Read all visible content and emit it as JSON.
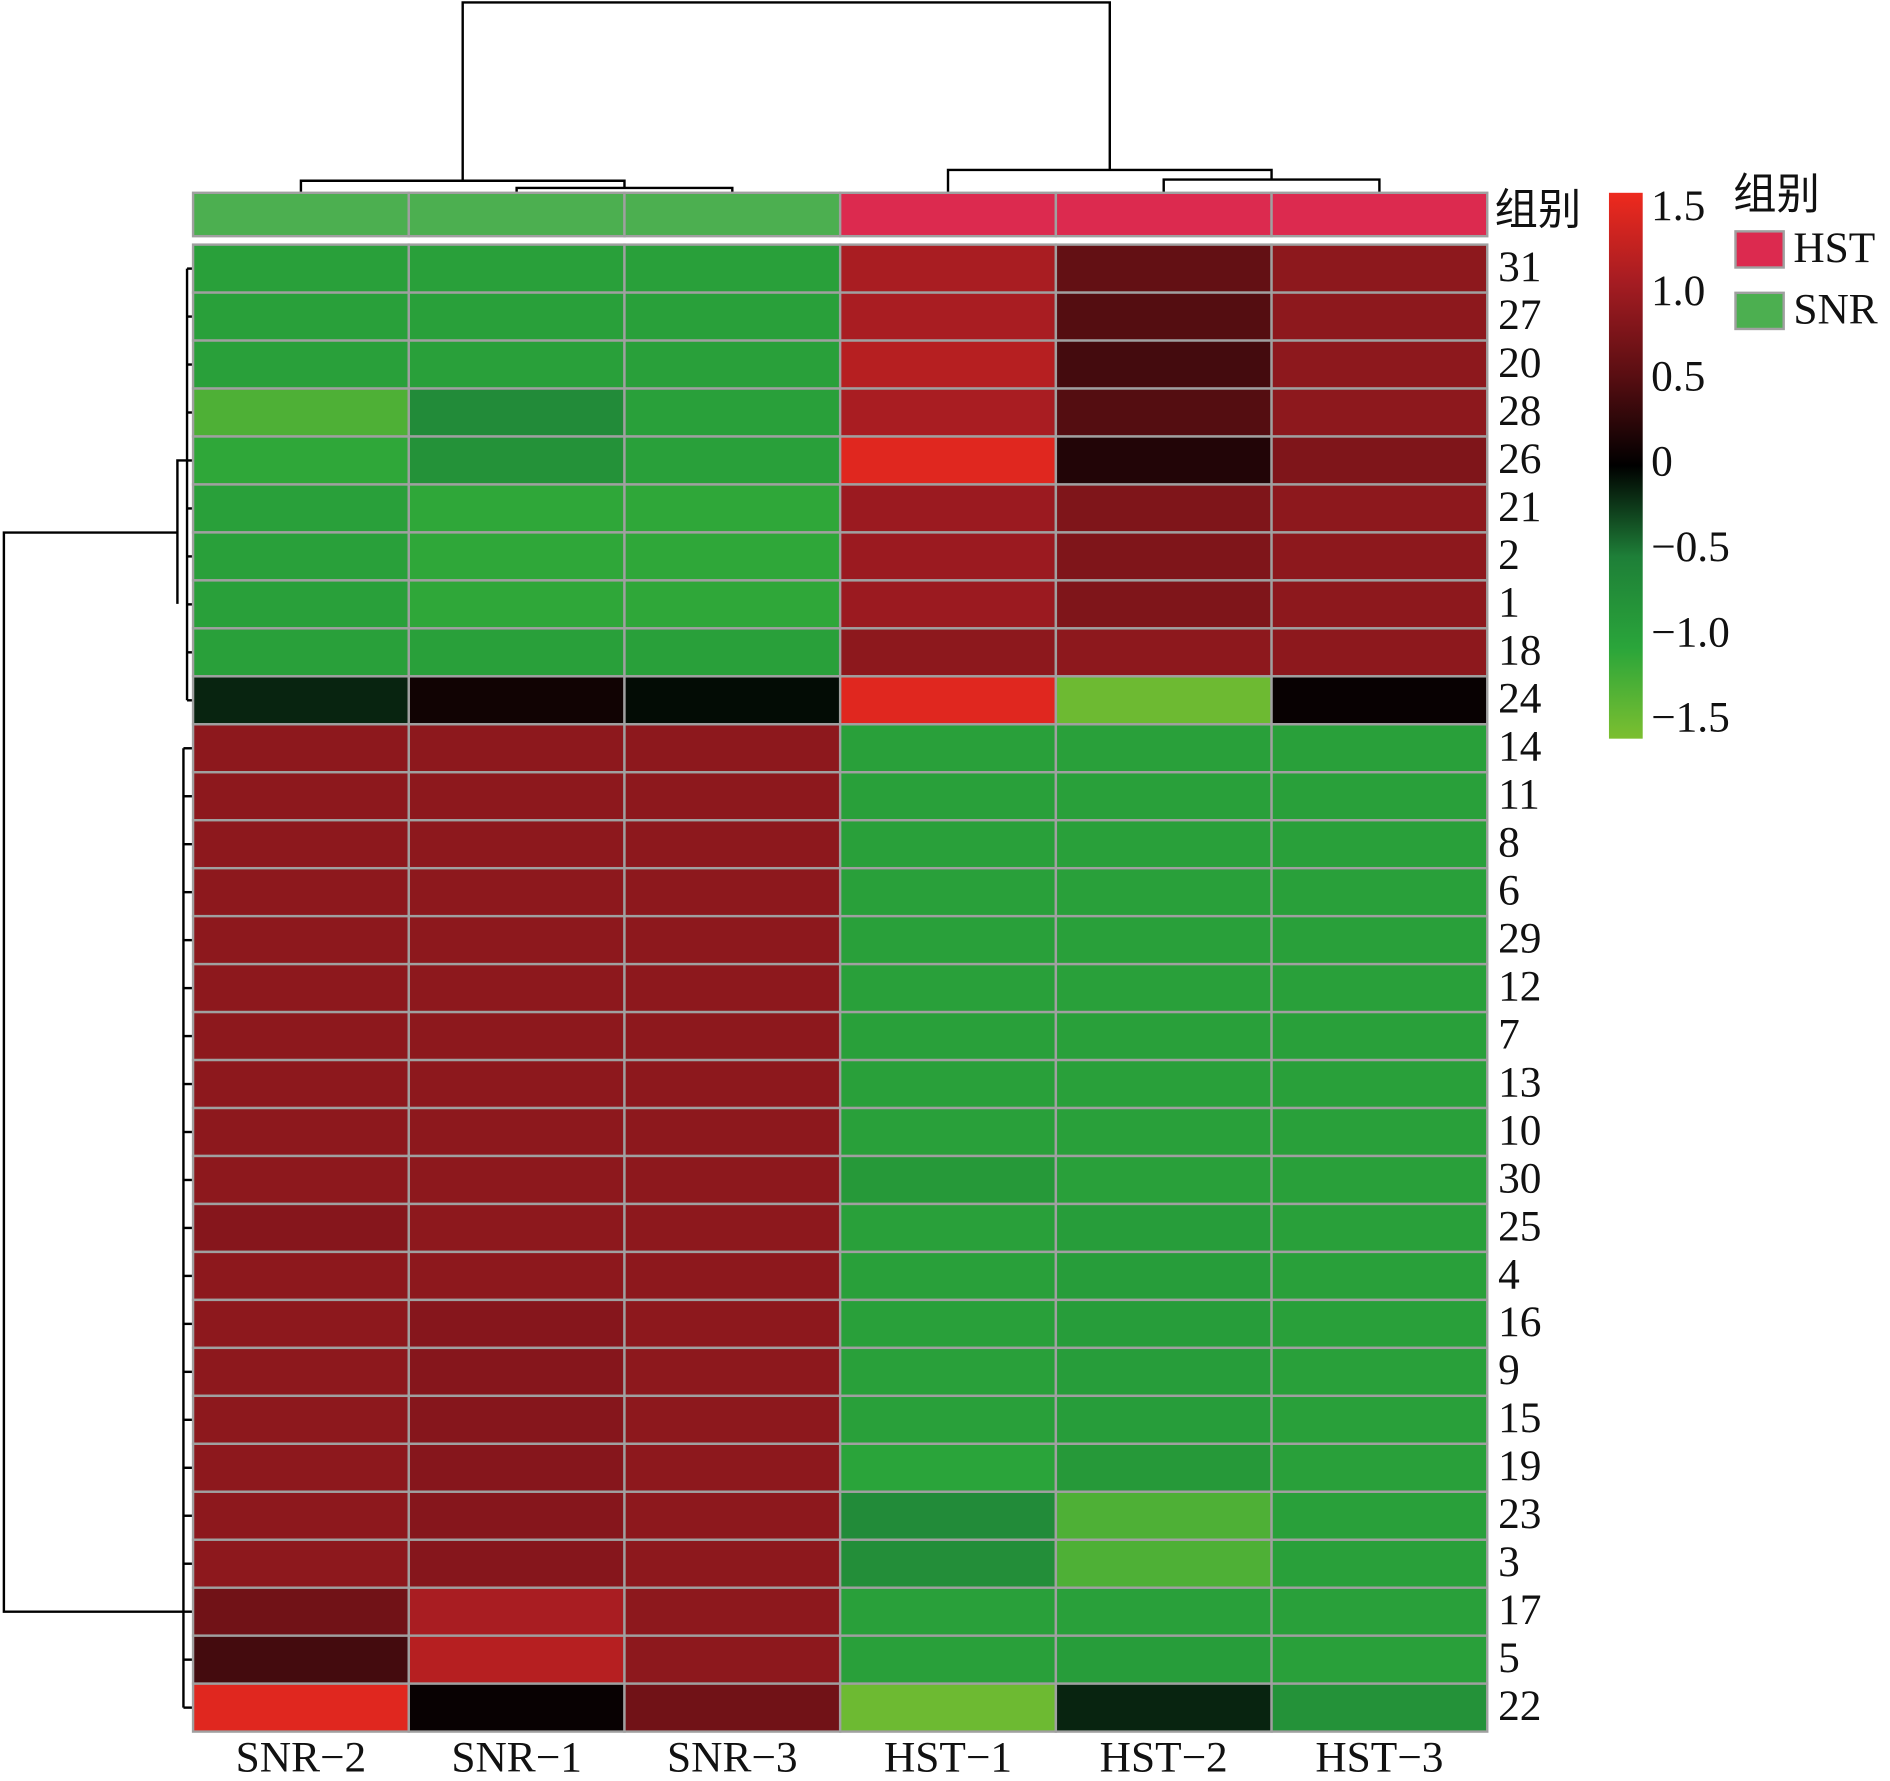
{
  "chart_data": {
    "type": "heatmap",
    "columns": [
      "SNR−2",
      "SNR−1",
      "SNR−3",
      "HST−1",
      "HST−2",
      "HST−3"
    ],
    "rows": [
      "31",
      "27",
      "20",
      "28",
      "26",
      "21",
      "2",
      "1",
      "18",
      "24",
      "14",
      "11",
      "8",
      "6",
      "29",
      "12",
      "7",
      "13",
      "10",
      "30",
      "25",
      "4",
      "16",
      "9",
      "15",
      "19",
      "23",
      "3",
      "17",
      "5",
      "22"
    ],
    "values": [
      [
        -1.0,
        -1.0,
        -1.0,
        1.1,
        0.6,
        0.9
      ],
      [
        -1.0,
        -1.0,
        -1.0,
        1.1,
        0.5,
        0.9
      ],
      [
        -1.0,
        -1.0,
        -1.0,
        1.2,
        0.4,
        0.9
      ],
      [
        -1.3,
        -0.7,
        -1.0,
        1.1,
        0.5,
        0.9
      ],
      [
        -1.1,
        -0.8,
        -1.0,
        1.5,
        0.2,
        0.8
      ],
      [
        -1.0,
        -1.1,
        -1.1,
        1.0,
        0.8,
        0.9
      ],
      [
        -1.0,
        -1.1,
        -1.1,
        1.0,
        0.8,
        0.9
      ],
      [
        -1.0,
        -1.1,
        -1.1,
        1.0,
        0.8,
        0.9
      ],
      [
        -1.0,
        -1.0,
        -1.0,
        0.9,
        0.9,
        0.9
      ],
      [
        -0.15,
        0.1,
        -0.05,
        1.5,
        -1.5,
        0.05
      ],
      [
        0.9,
        0.9,
        0.9,
        -1.0,
        -1.0,
        -1.0
      ],
      [
        0.9,
        0.9,
        0.9,
        -1.0,
        -1.0,
        -1.0
      ],
      [
        0.9,
        0.9,
        0.9,
        -1.0,
        -1.0,
        -1.0
      ],
      [
        0.9,
        0.9,
        0.9,
        -1.0,
        -1.0,
        -1.0
      ],
      [
        0.9,
        0.9,
        0.9,
        -1.0,
        -1.0,
        -1.0
      ],
      [
        0.9,
        0.9,
        0.9,
        -1.0,
        -1.0,
        -1.0
      ],
      [
        0.9,
        0.9,
        0.9,
        -1.0,
        -1.0,
        -1.0
      ],
      [
        0.9,
        0.9,
        0.9,
        -1.0,
        -1.0,
        -1.0
      ],
      [
        0.9,
        0.9,
        0.9,
        -1.0,
        -1.0,
        -1.0
      ],
      [
        0.9,
        0.9,
        0.9,
        -0.9,
        -1.0,
        -1.0
      ],
      [
        0.85,
        0.9,
        0.9,
        -1.0,
        -0.95,
        -1.0
      ],
      [
        0.9,
        0.9,
        0.9,
        -1.0,
        -0.95,
        -1.0
      ],
      [
        0.9,
        0.85,
        0.9,
        -1.0,
        -0.95,
        -1.0
      ],
      [
        0.9,
        0.85,
        0.9,
        -1.0,
        -0.95,
        -1.0
      ],
      [
        0.9,
        0.85,
        0.9,
        -1.0,
        -0.95,
        -1.0
      ],
      [
        0.9,
        0.85,
        0.9,
        -1.05,
        -0.9,
        -1.0
      ],
      [
        0.9,
        0.85,
        0.9,
        -0.7,
        -1.3,
        -1.0
      ],
      [
        0.9,
        0.85,
        0.9,
        -0.75,
        -1.3,
        -1.0
      ],
      [
        0.7,
        1.1,
        0.9,
        -1.0,
        -1.0,
        -1.0
      ],
      [
        0.4,
        1.2,
        0.9,
        -1.0,
        -0.95,
        -1.0
      ],
      [
        1.5,
        0.05,
        0.7,
        -1.5,
        -0.15,
        -0.8
      ]
    ],
    "clim": [
      -1.6,
      1.6
    ],
    "colorscale": [
      "#7cbf30",
      "#2aa53a",
      "#1e7f38",
      "#000000",
      "#5a0e12",
      "#a41c22",
      "#ee2a1e"
    ],
    "colorbar_ticks": [
      1.5,
      {
        "value": 1,
        "label": "1.0"
      },
      0.5,
      0,
      {
        "value": -0.5,
        "label": "−0.5"
      },
      {
        "value": -1,
        "label": "−1.0"
      },
      {
        "value": -1.5,
        "label": "−1.5"
      }
    ],
    "annotation_label": "组别",
    "groups": [
      "SNR",
      "SNR",
      "SNR",
      "HST",
      "HST",
      "HST"
    ],
    "legend_title": "组别",
    "legend": [
      {
        "name": "HST",
        "color": "#dc2a4f"
      },
      {
        "name": "SNR",
        "color": "#4caf50"
      }
    ]
  }
}
